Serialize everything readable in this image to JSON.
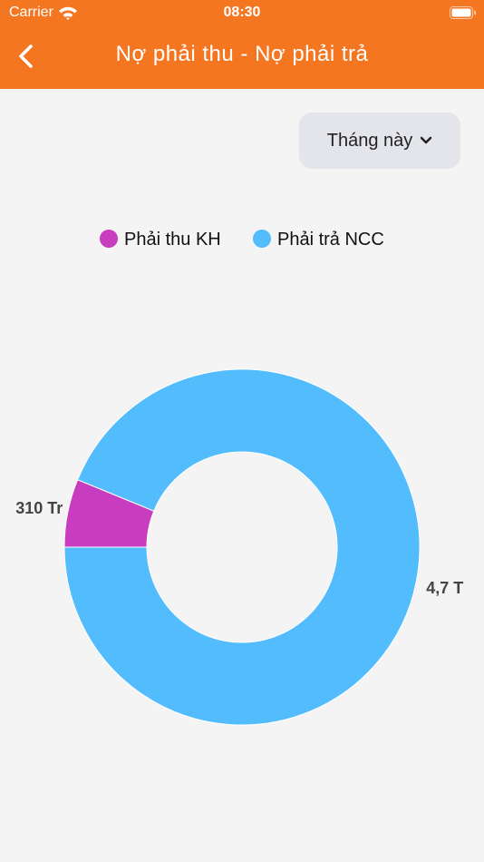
{
  "status_bar": {
    "carrier": "Carrier",
    "time": "08:30"
  },
  "header": {
    "title": "Nợ phải thu - Nợ phải trả"
  },
  "filter": {
    "label": "Tháng này"
  },
  "chart_data": {
    "type": "donut",
    "categories": [
      "Phải thu KH",
      "Phải trả NCC"
    ],
    "values": [
      310000000,
      4700000000
    ],
    "value_labels": [
      "310 Tr",
      "4,7 T"
    ],
    "colors": [
      "#c83cc0",
      "#52bcfd"
    ]
  }
}
